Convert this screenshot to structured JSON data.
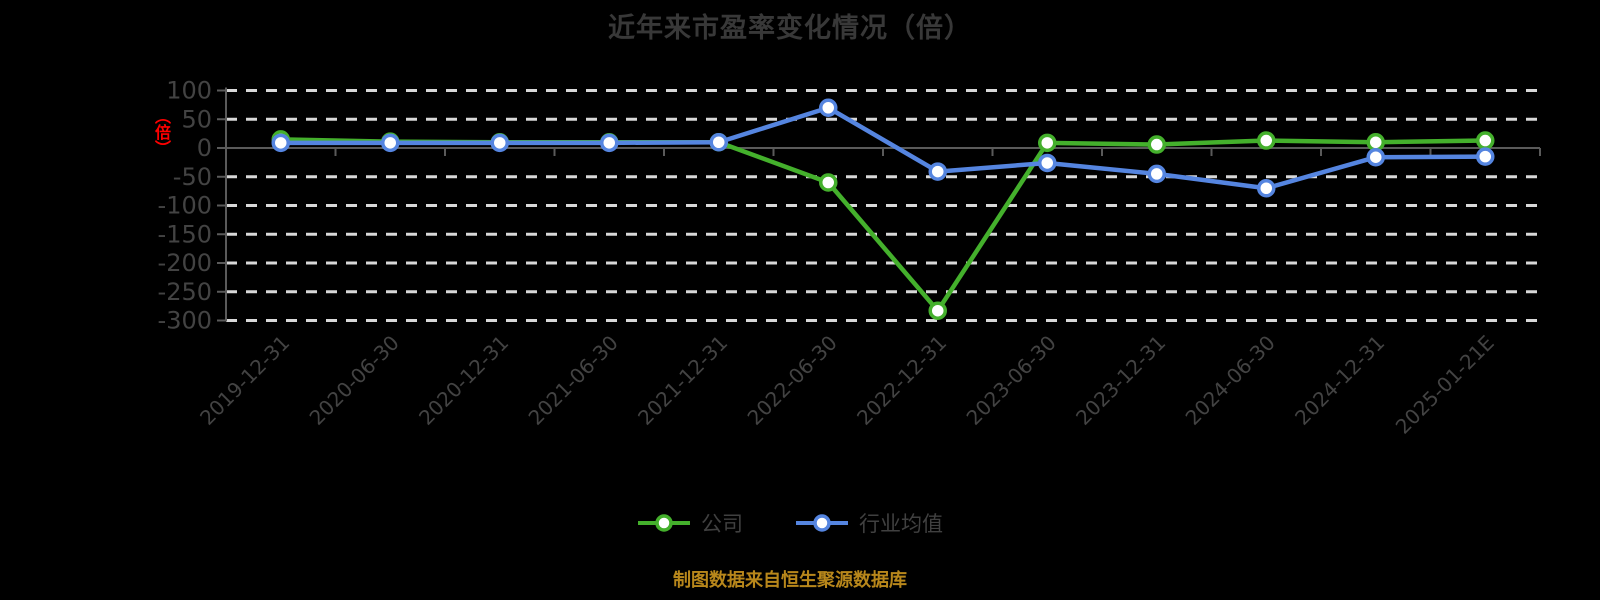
{
  "title": "近年来市盈率变化情况（倍）",
  "y_axis_unit_label": "（倍）",
  "source_note": "制图数据来自恒生聚源数据库",
  "colors": {
    "background": "#000000",
    "company": "#44b02c",
    "industry": "#5585e0",
    "grid": "#d8d8d8",
    "axis": "#5a5a5a",
    "tick_text": "#434343",
    "title_text": "#383838",
    "legend_text": "#404040",
    "source_text": "#b8871b",
    "unit_label": "#ff0000",
    "marker_fill": "#ffffff"
  },
  "legend": {
    "items": [
      {
        "label": "公司",
        "color_key": "company"
      },
      {
        "label": "行业均值",
        "color_key": "industry"
      }
    ]
  },
  "chart_data": {
    "type": "line",
    "title": "近年来市盈率变化情况（倍）",
    "ylabel": "（倍）",
    "categories": [
      "2019-12-31",
      "2020-06-30",
      "2020-12-31",
      "2021-06-30",
      "2021-12-31",
      "2022-06-30",
      "2022-12-31",
      "2023-06-30",
      "2023-12-31",
      "2024-06-30",
      "2024-12-31",
      "2025-01-21E"
    ],
    "series": [
      {
        "name": "公司",
        "color_key": "company",
        "values": [
          15,
          11,
          10,
          10,
          10,
          -60,
          -283,
          9,
          6,
          13,
          10,
          13
        ]
      },
      {
        "name": "行业均值",
        "color_key": "industry",
        "values": [
          9,
          9,
          9,
          9,
          10,
          70,
          -41,
          -26,
          -45,
          -70,
          -16,
          -15
        ]
      }
    ],
    "values_are_estimates": true,
    "ylim": [
      -300,
      100
    ],
    "y_ticks": [
      100,
      50,
      0,
      -50,
      -100,
      -150,
      -200,
      -250,
      -300
    ],
    "grid": "horizontal-dashed",
    "x_tick_rotation": 45,
    "legend_position": "bottom-center"
  }
}
